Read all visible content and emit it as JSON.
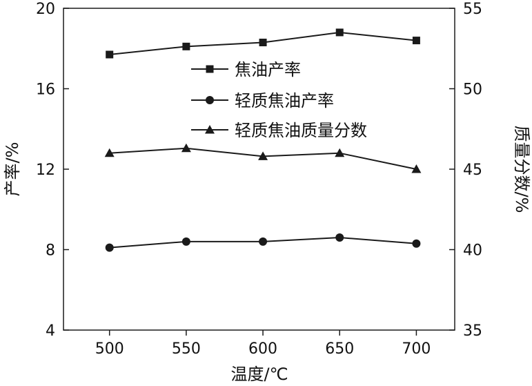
{
  "chart_data": {
    "type": "line",
    "x": [
      500,
      550,
      600,
      650,
      700
    ],
    "xlabel": "温度/℃",
    "ylabel_left": "产率/%",
    "ylabel_right": "质量分数/%",
    "xticks": [
      "500",
      "550",
      "600",
      "650",
      "700"
    ],
    "yticks_left": [
      "4",
      "8",
      "12",
      "16",
      "20"
    ],
    "yticks_right": [
      "35",
      "40",
      "45",
      "50",
      "55"
    ],
    "ylim_left": [
      4,
      20
    ],
    "ylim_right": [
      35,
      55
    ],
    "xlim": [
      470,
      725
    ],
    "grid": false,
    "legend_position": "upper-center",
    "series": [
      {
        "name": "焦油产率",
        "axis": "left",
        "marker": "square",
        "color": "#1a1a1a",
        "values": [
          17.7,
          18.1,
          18.3,
          18.8,
          18.4
        ]
      },
      {
        "name": "轻质焦油产率",
        "axis": "left",
        "marker": "circle",
        "color": "#1a1a1a",
        "values": [
          8.1,
          8.4,
          8.4,
          8.6,
          8.3
        ]
      },
      {
        "name": "轻质焦油质量分数",
        "axis": "right",
        "marker": "triangle",
        "color": "#1a1a1a",
        "values": [
          46.0,
          46.3,
          45.8,
          46.0,
          45.0
        ]
      }
    ]
  }
}
